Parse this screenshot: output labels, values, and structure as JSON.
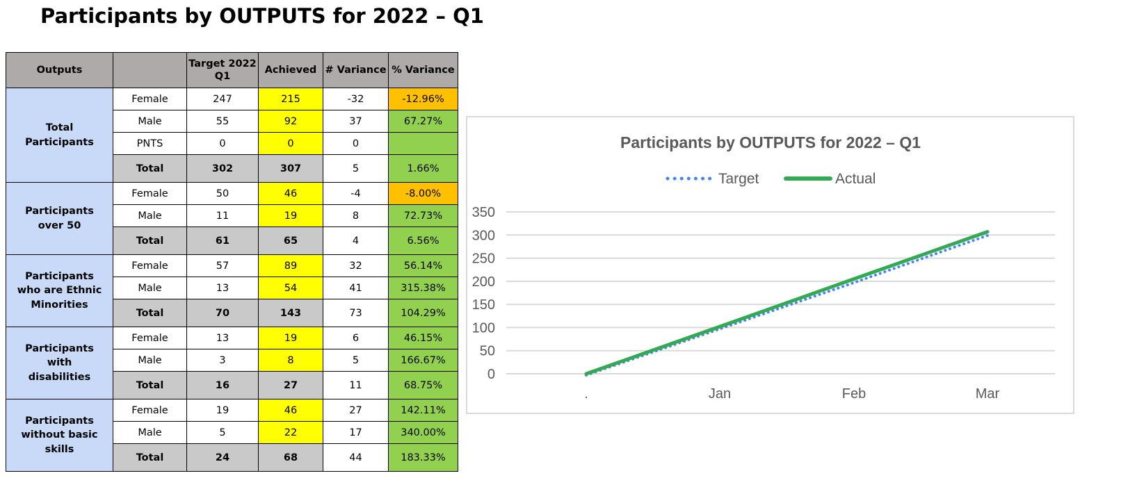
{
  "title": "Participants by OUTPUTS for 2022 – Q1",
  "table": {
    "headers": [
      "Outputs",
      "",
      "Target 2022 Q1",
      "Achieved",
      "# Variance",
      "% Variance"
    ],
    "groups": [
      {
        "name": "Total Participants",
        "rows": [
          {
            "label": "Female",
            "target": "247",
            "achieved": "215",
            "var": "-32",
            "pct": "-12.96%",
            "status": "neg"
          },
          {
            "label": "Male",
            "target": "55",
            "achieved": "92",
            "var": "37",
            "pct": "67.27%",
            "status": "pos"
          },
          {
            "label": "PNTS",
            "target": "0",
            "achieved": "0",
            "var": "0",
            "pct": "",
            "status": "pos"
          },
          {
            "label": "Total",
            "target": "302",
            "achieved": "307",
            "var": "5",
            "pct": "1.66%",
            "status": "pos",
            "total": true
          }
        ]
      },
      {
        "name": "Participants over 50",
        "rows": [
          {
            "label": "Female",
            "target": "50",
            "achieved": "46",
            "var": "-4",
            "pct": "-8.00%",
            "status": "neg"
          },
          {
            "label": "Male",
            "target": "11",
            "achieved": "19",
            "var": "8",
            "pct": "72.73%",
            "status": "pos"
          },
          {
            "label": "Total",
            "target": "61",
            "achieved": "65",
            "var": "4",
            "pct": "6.56%",
            "status": "pos",
            "total": true
          }
        ]
      },
      {
        "name": "Participants who are Ethnic Minorities",
        "rows": [
          {
            "label": "Female",
            "target": "57",
            "achieved": "89",
            "var": "32",
            "pct": "56.14%",
            "status": "pos"
          },
          {
            "label": "Male",
            "target": "13",
            "achieved": "54",
            "var": "41",
            "pct": "315.38%",
            "status": "pos"
          },
          {
            "label": "Total",
            "target": "70",
            "achieved": "143",
            "var": "73",
            "pct": "104.29%",
            "status": "pos",
            "total": true
          }
        ]
      },
      {
        "name": "Participants with disabilities",
        "rows": [
          {
            "label": "Female",
            "target": "13",
            "achieved": "19",
            "var": "6",
            "pct": "46.15%",
            "status": "pos"
          },
          {
            "label": "Male",
            "target": "3",
            "achieved": "8",
            "var": "5",
            "pct": "166.67%",
            "status": "pos"
          },
          {
            "label": "Total",
            "target": "16",
            "achieved": "27",
            "var": "11",
            "pct": "68.75%",
            "status": "pos",
            "total": true
          }
        ]
      },
      {
        "name": "Participants without basic skills",
        "rows": [
          {
            "label": "Female",
            "target": "19",
            "achieved": "46",
            "var": "27",
            "pct": "142.11%",
            "status": "pos"
          },
          {
            "label": "Male",
            "target": "5",
            "achieved": "22",
            "var": "17",
            "pct": "340.00%",
            "status": "pos"
          },
          {
            "label": "Total",
            "target": "24",
            "achieved": "68",
            "var": "44",
            "pct": "183.33%",
            "status": "pos",
            "total": true
          }
        ]
      }
    ]
  },
  "chart_data": {
    "type": "line",
    "title": "Participants by OUTPUTS for 2022 – Q1",
    "categories": [
      ".",
      "Jan",
      "Feb",
      "Mar"
    ],
    "series": [
      {
        "name": "Target",
        "values": [
          0,
          100,
          200,
          302
        ],
        "color": "#4285f4",
        "style": "dotted"
      },
      {
        "name": "Actual",
        "values": [
          0,
          102,
          205,
          307
        ],
        "color": "#34a853",
        "style": "solid"
      }
    ],
    "yticks": [
      0,
      50,
      100,
      150,
      200,
      250,
      300,
      350
    ],
    "ylim": [
      0,
      350
    ],
    "grid": true,
    "legend": "top"
  }
}
